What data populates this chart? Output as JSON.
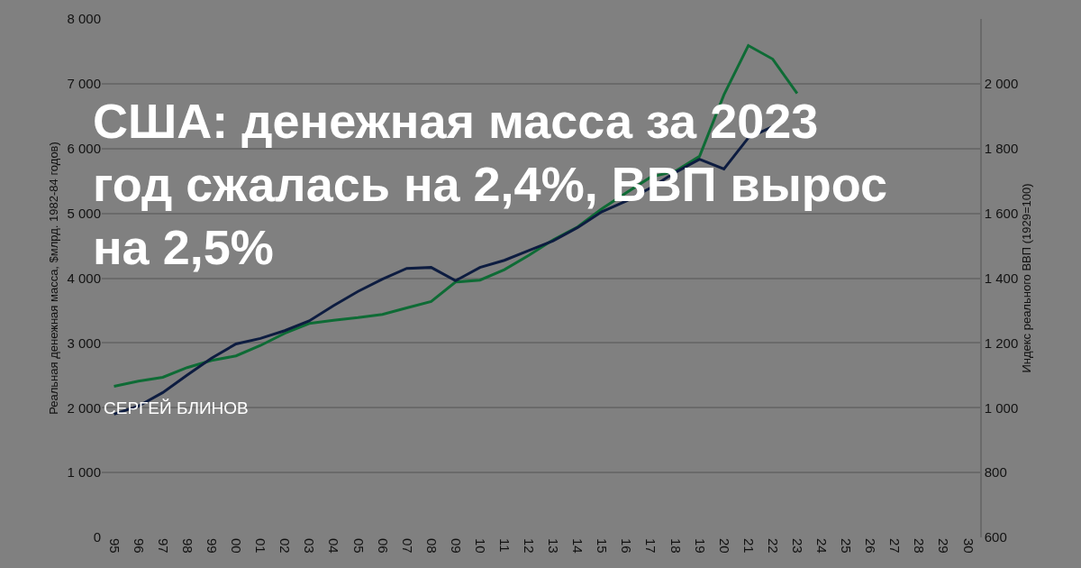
{
  "chart_data": {
    "type": "line",
    "title": "США: денежная масса за 2023 год сжалась на 2,4%, ВВП вырос на 2,5%",
    "ylabel": "Реальная денежная масса, $млрд. 1982-84 годов)",
    "y2label": "Индекс реального ВВП (1929=100)",
    "annotations": [
      "СЕРГЕЙ БЛИНОВ"
    ],
    "categories": [
      "95",
      "96",
      "97",
      "98",
      "99",
      "00",
      "01",
      "02",
      "03",
      "04",
      "05",
      "06",
      "07",
      "08",
      "09",
      "10",
      "11",
      "12",
      "13",
      "14",
      "15",
      "16",
      "17",
      "18",
      "19",
      "20",
      "21",
      "22",
      "23",
      "24",
      "25",
      "26",
      "27",
      "28",
      "29",
      "30"
    ],
    "series": [
      {
        "color": "#0e6b35",
        "values": [
          2330,
          2410,
          2470,
          2620,
          2730,
          2800,
          2960,
          3150,
          3300,
          3350,
          3390,
          3440,
          3540,
          3640,
          3940,
          3970,
          4130,
          4350,
          4590,
          4790,
          5070,
          5320,
          5560,
          5650,
          5880,
          6830,
          7590,
          7380,
          6850,
          null,
          null,
          null,
          null,
          null,
          null,
          null
        ]
      },
      {
        "color": "#0d1c40",
        "axis": "y2",
        "values": [
          980,
          1005,
          1047,
          1101,
          1153,
          1197,
          1214,
          1238,
          1268,
          1315,
          1359,
          1397,
          1430,
          1433,
          1392,
          1433,
          1455,
          1485,
          1515,
          1556,
          1605,
          1638,
          1679,
          1726,
          1767,
          1737,
          1833,
          1868,
          null,
          null,
          null,
          null,
          null,
          null,
          null,
          null
        ]
      }
    ],
    "ylim": [
      0,
      8000
    ],
    "yticks": [
      {
        "value": 0,
        "label": "0"
      },
      {
        "value": 1000,
        "label": "1 000"
      },
      {
        "value": 2000,
        "label": "2 000"
      },
      {
        "value": 3000,
        "label": "3 000"
      },
      {
        "value": 4000,
        "label": "4 000"
      },
      {
        "value": 5000,
        "label": "5 000"
      },
      {
        "value": 6000,
        "label": "6 000"
      },
      {
        "value": 7000,
        "label": "7 000"
      },
      {
        "value": 8000,
        "label": "8 000"
      }
    ],
    "y2lim": [
      600,
      2200
    ],
    "y2ticks": [
      600,
      800,
      {
        "value": 1000,
        "label": "1 000"
      },
      {
        "value": 1200,
        "label": "1 200"
      },
      {
        "value": 1400,
        "label": "1 400"
      },
      {
        "value": 1600,
        "label": "1 600"
      },
      {
        "value": 1800,
        "label": "1 800"
      },
      {
        "value": 2000,
        "label": "2 000"
      }
    ],
    "grid": "y",
    "marker": "none",
    "line_style": "solid"
  }
}
